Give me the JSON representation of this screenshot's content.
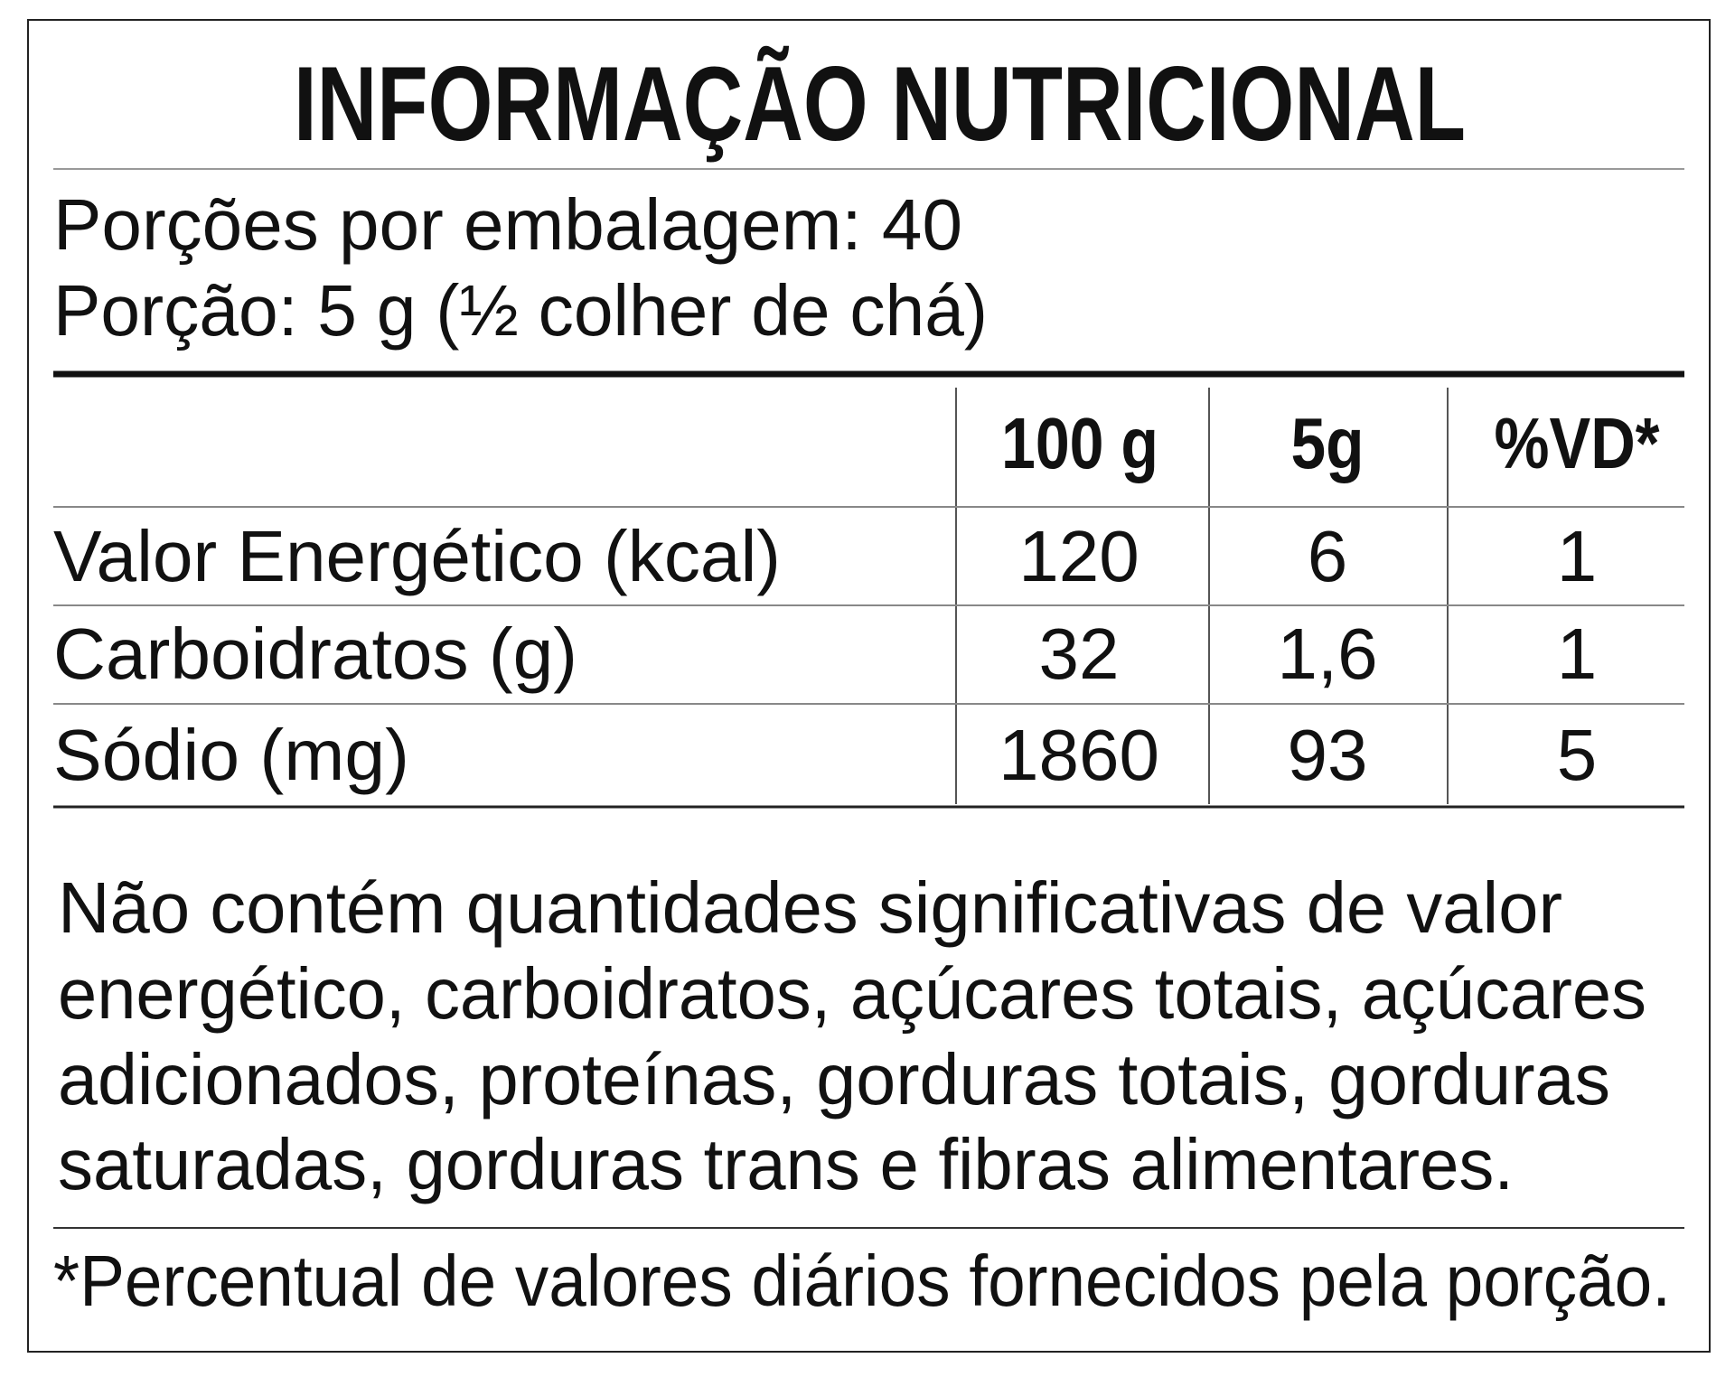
{
  "title": "INFORMAÇÃO NUTRICIONAL",
  "serving": {
    "per_package": "Porções por embalagem: 40",
    "portion": "Porção: 5 g (½ colher de chá)"
  },
  "table": {
    "header": [
      "100 g",
      "5g",
      "%VD*"
    ],
    "rows": [
      [
        "Valor Energético (kcal)",
        "120",
        "6",
        "1"
      ],
      [
        "Carboidratos (g)",
        "32",
        "1,6",
        "1"
      ],
      [
        "Sódio (mg)",
        "1860",
        "93",
        "5"
      ]
    ]
  },
  "paragraph": {
    "lines": [
      "Não contém quantidades significativas de valor",
      "energético, carboidratos, açúcares totais, açúcares",
      "adicionados, proteínas, gorduras totais, gorduras",
      "saturadas, gorduras trans e fibras alimentares."
    ]
  },
  "footnote": "*Percentual de valores diários fornecidos pela porção."
}
